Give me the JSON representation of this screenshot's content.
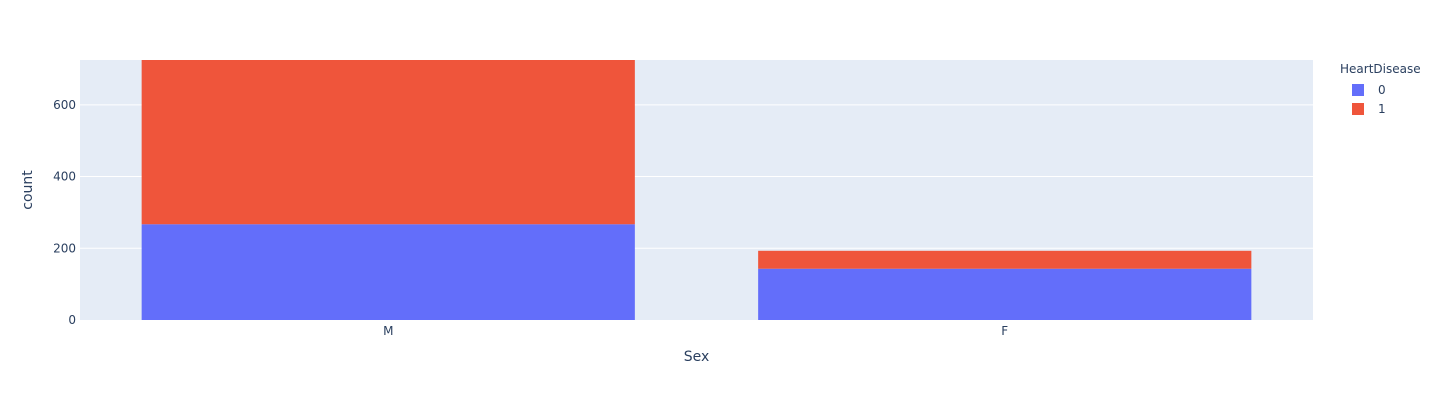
{
  "chart_data": {
    "type": "bar",
    "barmode": "stack",
    "categories": [
      "M",
      "F"
    ],
    "series": [
      {
        "name": "0",
        "values": [
          267,
          143
        ],
        "color": "#636efa"
      },
      {
        "name": "1",
        "values": [
          458,
          50
        ],
        "color": "#ef553b"
      }
    ],
    "xlabel": "Sex",
    "ylabel": "count",
    "ylim": [
      0,
      725
    ],
    "yticks": [
      0,
      200,
      400,
      600
    ],
    "grid": true,
    "legend": {
      "title": "HeartDisease",
      "placement": "top-right"
    },
    "colors": {
      "plot_bg": "#e5ecf6",
      "grid": "#ffffff",
      "text": "#2a3f5f"
    }
  }
}
